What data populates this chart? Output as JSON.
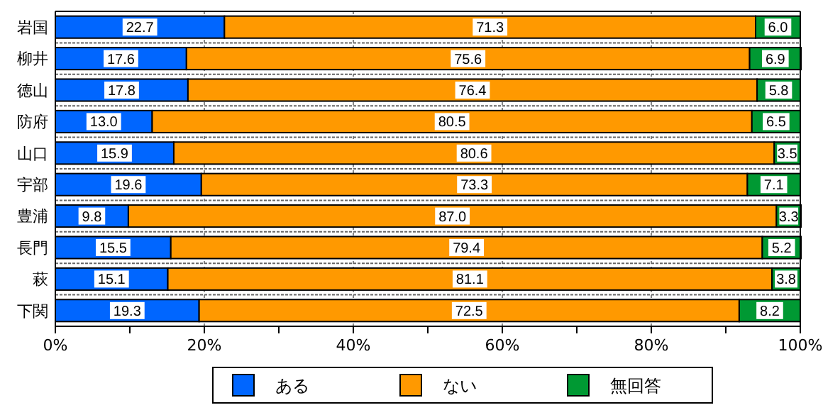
{
  "chart_data": {
    "type": "bar",
    "orientation": "horizontal",
    "stacked": true,
    "grid": "x",
    "legend": "bottom",
    "categories": [
      "岩国",
      "柳井",
      "徳山",
      "防府",
      "山口",
      "宇部",
      "豊浦",
      "長門",
      "萩",
      "下関"
    ],
    "series": [
      {
        "name": "ある",
        "color": "#0066ff",
        "values": [
          22.7,
          17.6,
          17.8,
          13.0,
          15.9,
          19.6,
          9.8,
          15.5,
          15.1,
          19.3
        ],
        "value_labels": [
          "22.7",
          "17.6",
          "17.8",
          "13.0",
          "15.9",
          "19.6",
          "9.8",
          "15.5",
          "15.1",
          "19.3"
        ]
      },
      {
        "name": "ない",
        "color": "#ff9900",
        "values": [
          71.3,
          75.6,
          76.4,
          80.5,
          80.6,
          73.3,
          87.0,
          79.4,
          81.1,
          72.5
        ],
        "value_labels": [
          "71.3",
          "75.6",
          "76.4",
          "80.5",
          "80.6",
          "73.3",
          "87.0",
          "79.4",
          "81.1",
          "72.5"
        ]
      },
      {
        "name": "無回答",
        "color": "#009933",
        "values": [
          6.0,
          6.9,
          5.8,
          6.5,
          3.5,
          7.1,
          3.3,
          5.2,
          3.8,
          8.2
        ],
        "value_labels": [
          "6.0",
          "6.9",
          "5.8",
          "6.5",
          "3.5",
          "7.1",
          "3.3",
          "5.2",
          "3.8",
          "8.2"
        ]
      }
    ],
    "xlim": [
      0,
      100
    ],
    "xticks": [
      {
        "value": 0,
        "label": "0%"
      },
      {
        "value": 10,
        "label": null
      },
      {
        "value": 20,
        "label": "20%"
      },
      {
        "value": 30,
        "label": null
      },
      {
        "value": 40,
        "label": "40%"
      },
      {
        "value": 50,
        "label": null
      },
      {
        "value": 60,
        "label": "60%"
      },
      {
        "value": 70,
        "label": null
      },
      {
        "value": 80,
        "label": "80%"
      },
      {
        "value": 90,
        "label": null
      },
      {
        "value": 100,
        "label": "100%"
      }
    ]
  }
}
